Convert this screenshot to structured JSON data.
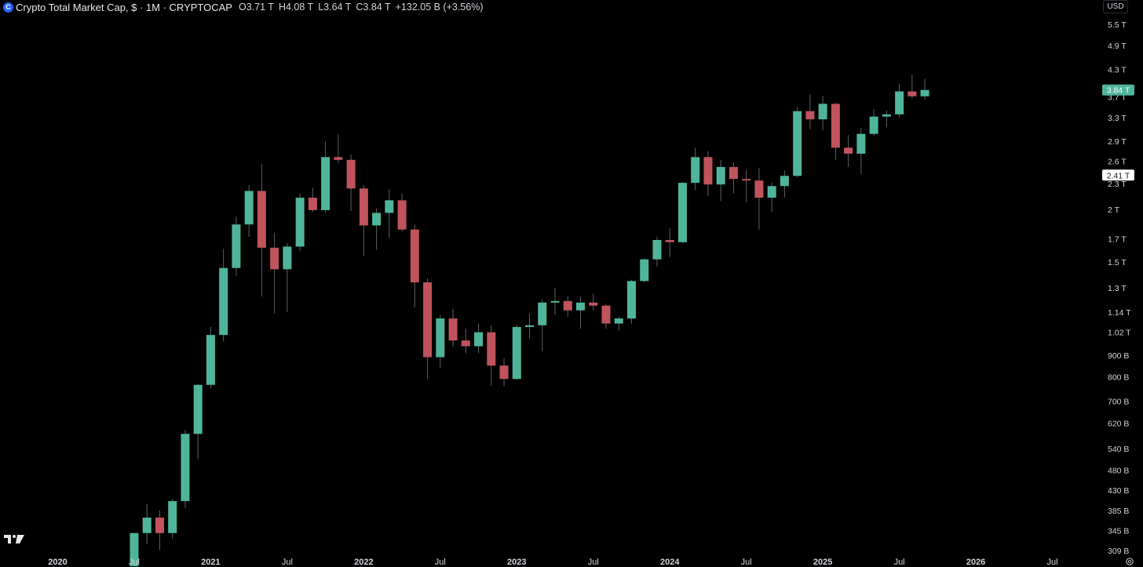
{
  "legend": {
    "title": "Crypto Total Market Cap, $ · 1M · CRYPTOCAP",
    "open_key": "O",
    "open": "3.71 T",
    "high_key": "H",
    "high": "4.08 T",
    "low_key": "L",
    "low": "3.64 T",
    "close_key": "C",
    "close": "3.84 T",
    "change": "+132.05 B (+3.56%)"
  },
  "currency": "USD",
  "colors": {
    "up": "#4fb59a",
    "down": "#c0535c",
    "background": "#000000",
    "text": "#d1d4dc"
  },
  "price_tags": [
    {
      "label": "3.84 T",
      "value": 3840,
      "style": "last"
    },
    {
      "label": "2.41 T",
      "value": 2410,
      "style": "crosshair"
    }
  ],
  "chart_data": {
    "type": "candlestick",
    "title": "Crypto Total Market Cap, $ · 1M · CRYPTOCAP",
    "scale": "log",
    "y_unit": "B (USD)",
    "ylim": [
      300,
      6000
    ],
    "y_ticks": [
      {
        "label": "5.5 T",
        "value": 5500
      },
      {
        "label": "4.9 T",
        "value": 4900
      },
      {
        "label": "4.3 T",
        "value": 4300
      },
      {
        "label": "3.7 T",
        "value": 3700
      },
      {
        "label": "3.3 T",
        "value": 3300
      },
      {
        "label": "2.9 T",
        "value": 2900
      },
      {
        "label": "2.6 T",
        "value": 2600
      },
      {
        "label": "2.3 T",
        "value": 2300
      },
      {
        "label": "2 T",
        "value": 2000
      },
      {
        "label": "1.7 T",
        "value": 1700
      },
      {
        "label": "1.5 T",
        "value": 1500
      },
      {
        "label": "1.3 T",
        "value": 1300
      },
      {
        "label": "1.14 T",
        "value": 1140
      },
      {
        "label": "1.02 T",
        "value": 1020
      },
      {
        "label": "900 B",
        "value": 900
      },
      {
        "label": "800 B",
        "value": 800
      },
      {
        "label": "700 B",
        "value": 700
      },
      {
        "label": "620 B",
        "value": 620
      },
      {
        "label": "540 B",
        "value": 540
      },
      {
        "label": "480 B",
        "value": 480
      },
      {
        "label": "430 B",
        "value": 430
      },
      {
        "label": "385 B",
        "value": 385
      },
      {
        "label": "345 B",
        "value": 345
      },
      {
        "label": "309 B",
        "value": 309
      }
    ],
    "x_ticks": [
      {
        "label": "2020",
        "month": "2020-01",
        "year": true
      },
      {
        "label": "Jul",
        "month": "2020-07",
        "year": false
      },
      {
        "label": "2021",
        "month": "2021-01",
        "year": true
      },
      {
        "label": "Jul",
        "month": "2021-07",
        "year": false
      },
      {
        "label": "2022",
        "month": "2022-01",
        "year": true
      },
      {
        "label": "Jul",
        "month": "2022-07",
        "year": false
      },
      {
        "label": "2023",
        "month": "2023-01",
        "year": true
      },
      {
        "label": "Jul",
        "month": "2023-07",
        "year": false
      },
      {
        "label": "2024",
        "month": "2024-01",
        "year": true
      },
      {
        "label": "Jul",
        "month": "2024-07",
        "year": false
      },
      {
        "label": "2025",
        "month": "2025-01",
        "year": true
      },
      {
        "label": "Jul",
        "month": "2025-07",
        "year": false
      },
      {
        "label": "2026",
        "month": "2026-01",
        "year": true
      },
      {
        "label": "Jul",
        "month": "2026-07",
        "year": false
      }
    ],
    "candles": [
      {
        "month": "2020-07",
        "o": 259,
        "h": 340,
        "l": 255,
        "c": 340
      },
      {
        "month": "2020-08",
        "o": 340,
        "h": 398,
        "l": 320,
        "c": 370
      },
      {
        "month": "2020-09",
        "o": 370,
        "h": 385,
        "l": 310,
        "c": 340
      },
      {
        "month": "2020-10",
        "o": 340,
        "h": 410,
        "l": 330,
        "c": 405
      },
      {
        "month": "2020-11",
        "o": 405,
        "h": 598,
        "l": 390,
        "c": 585
      },
      {
        "month": "2020-12",
        "o": 585,
        "h": 768,
        "l": 510,
        "c": 765
      },
      {
        "month": "2021-01",
        "o": 765,
        "h": 1050,
        "l": 750,
        "c": 1005
      },
      {
        "month": "2021-02",
        "o": 1005,
        "h": 1610,
        "l": 970,
        "c": 1450
      },
      {
        "month": "2021-03",
        "o": 1450,
        "h": 1920,
        "l": 1390,
        "c": 1840
      },
      {
        "month": "2021-04",
        "o": 1840,
        "h": 2280,
        "l": 1720,
        "c": 2210
      },
      {
        "month": "2021-05",
        "o": 2210,
        "h": 2560,
        "l": 1240,
        "c": 1620
      },
      {
        "month": "2021-06",
        "o": 1620,
        "h": 1760,
        "l": 1130,
        "c": 1440
      },
      {
        "month": "2021-07",
        "o": 1440,
        "h": 1660,
        "l": 1140,
        "c": 1630
      },
      {
        "month": "2021-08",
        "o": 1630,
        "h": 2180,
        "l": 1590,
        "c": 2130
      },
      {
        "month": "2021-09",
        "o": 2130,
        "h": 2250,
        "l": 1970,
        "c": 1990
      },
      {
        "month": "2021-10",
        "o": 1990,
        "h": 2900,
        "l": 1960,
        "c": 2660
      },
      {
        "month": "2021-11",
        "o": 2660,
        "h": 3020,
        "l": 2570,
        "c": 2620
      },
      {
        "month": "2021-12",
        "o": 2620,
        "h": 2700,
        "l": 1980,
        "c": 2240
      },
      {
        "month": "2022-01",
        "o": 2240,
        "h": 2280,
        "l": 1550,
        "c": 1830
      },
      {
        "month": "2022-02",
        "o": 1830,
        "h": 2010,
        "l": 1600,
        "c": 1960
      },
      {
        "month": "2022-03",
        "o": 1960,
        "h": 2230,
        "l": 1710,
        "c": 2100
      },
      {
        "month": "2022-04",
        "o": 2100,
        "h": 2180,
        "l": 1770,
        "c": 1790
      },
      {
        "month": "2022-05",
        "o": 1790,
        "h": 1840,
        "l": 1170,
        "c": 1340
      },
      {
        "month": "2022-06",
        "o": 1340,
        "h": 1370,
        "l": 790,
        "c": 890
      },
      {
        "month": "2022-07",
        "o": 890,
        "h": 1120,
        "l": 840,
        "c": 1100
      },
      {
        "month": "2022-08",
        "o": 1100,
        "h": 1160,
        "l": 940,
        "c": 975
      },
      {
        "month": "2022-09",
        "o": 975,
        "h": 1040,
        "l": 910,
        "c": 945
      },
      {
        "month": "2022-10",
        "o": 945,
        "h": 1070,
        "l": 910,
        "c": 1020
      },
      {
        "month": "2022-11",
        "o": 1020,
        "h": 1060,
        "l": 760,
        "c": 850
      },
      {
        "month": "2022-12",
        "o": 850,
        "h": 885,
        "l": 760,
        "c": 790
      },
      {
        "month": "2023-01",
        "o": 790,
        "h": 1060,
        "l": 785,
        "c": 1050
      },
      {
        "month": "2023-02",
        "o": 1050,
        "h": 1130,
        "l": 985,
        "c": 1060
      },
      {
        "month": "2023-03",
        "o": 1060,
        "h": 1220,
        "l": 920,
        "c": 1200
      },
      {
        "month": "2023-04",
        "o": 1200,
        "h": 1300,
        "l": 1120,
        "c": 1210
      },
      {
        "month": "2023-05",
        "o": 1210,
        "h": 1240,
        "l": 1110,
        "c": 1150
      },
      {
        "month": "2023-06",
        "o": 1150,
        "h": 1240,
        "l": 1040,
        "c": 1200
      },
      {
        "month": "2023-07",
        "o": 1200,
        "h": 1260,
        "l": 1150,
        "c": 1180
      },
      {
        "month": "2023-08",
        "o": 1180,
        "h": 1190,
        "l": 1040,
        "c": 1070
      },
      {
        "month": "2023-09",
        "o": 1070,
        "h": 1110,
        "l": 1030,
        "c": 1100
      },
      {
        "month": "2023-10",
        "o": 1100,
        "h": 1360,
        "l": 1070,
        "c": 1350
      },
      {
        "month": "2023-11",
        "o": 1350,
        "h": 1530,
        "l": 1340,
        "c": 1520
      },
      {
        "month": "2023-12",
        "o": 1520,
        "h": 1720,
        "l": 1460,
        "c": 1690
      },
      {
        "month": "2024-01",
        "o": 1690,
        "h": 1800,
        "l": 1540,
        "c": 1670
      },
      {
        "month": "2024-02",
        "o": 1670,
        "h": 2320,
        "l": 1660,
        "c": 2310
      },
      {
        "month": "2024-03",
        "o": 2310,
        "h": 2800,
        "l": 2220,
        "c": 2660
      },
      {
        "month": "2024-04",
        "o": 2660,
        "h": 2750,
        "l": 2150,
        "c": 2290
      },
      {
        "month": "2024-05",
        "o": 2290,
        "h": 2620,
        "l": 2090,
        "c": 2520
      },
      {
        "month": "2024-06",
        "o": 2520,
        "h": 2580,
        "l": 2180,
        "c": 2360
      },
      {
        "month": "2024-07",
        "o": 2360,
        "h": 2480,
        "l": 2080,
        "c": 2340
      },
      {
        "month": "2024-08",
        "o": 2340,
        "h": 2510,
        "l": 1790,
        "c": 2130
      },
      {
        "month": "2024-09",
        "o": 2130,
        "h": 2310,
        "l": 1970,
        "c": 2270
      },
      {
        "month": "2024-10",
        "o": 2270,
        "h": 2470,
        "l": 2130,
        "c": 2400
      },
      {
        "month": "2024-11",
        "o": 2400,
        "h": 3500,
        "l": 2380,
        "c": 3420
      },
      {
        "month": "2024-12",
        "o": 3420,
        "h": 3750,
        "l": 3100,
        "c": 3270
      },
      {
        "month": "2025-01",
        "o": 3270,
        "h": 3720,
        "l": 3080,
        "c": 3560
      },
      {
        "month": "2025-02",
        "o": 3560,
        "h": 3580,
        "l": 2620,
        "c": 2800
      },
      {
        "month": "2025-03",
        "o": 2800,
        "h": 3000,
        "l": 2520,
        "c": 2710
      },
      {
        "month": "2025-04",
        "o": 2710,
        "h": 3120,
        "l": 2420,
        "c": 3020
      },
      {
        "month": "2025-05",
        "o": 3020,
        "h": 3460,
        "l": 2990,
        "c": 3320
      },
      {
        "month": "2025-06",
        "o": 3320,
        "h": 3430,
        "l": 3130,
        "c": 3360
      },
      {
        "month": "2025-07",
        "o": 3360,
        "h": 3970,
        "l": 3300,
        "c": 3810
      },
      {
        "month": "2025-08",
        "o": 3810,
        "h": 4180,
        "l": 3660,
        "c": 3710
      },
      {
        "month": "2025-09",
        "o": 3710,
        "h": 4080,
        "l": 3640,
        "c": 3840
      }
    ]
  }
}
